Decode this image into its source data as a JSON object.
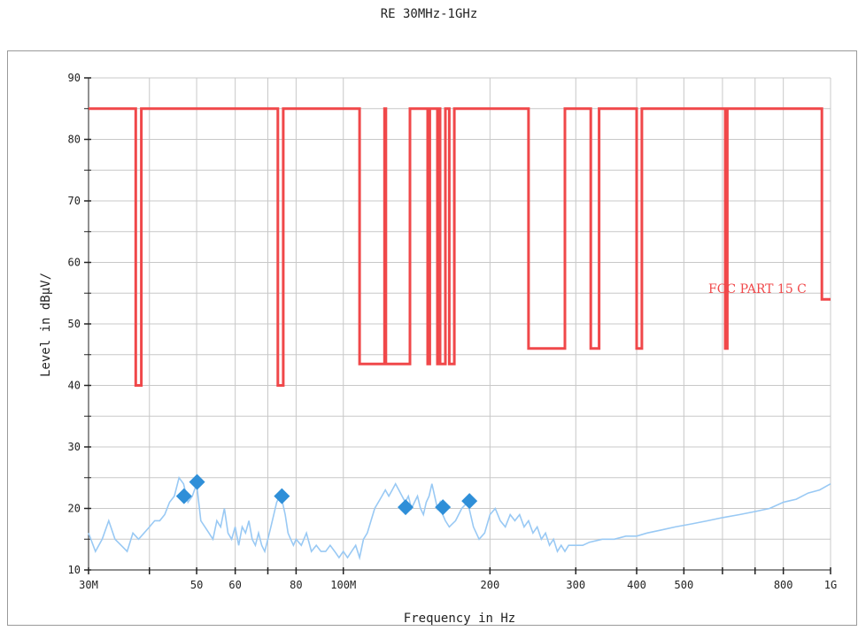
{
  "chart_data": {
    "type": "line",
    "title": "RE 30MHz-1GHz",
    "xlabel": "Frequency in Hz",
    "ylabel": "Level in dBμV/",
    "x_scale": "log",
    "xlim": [
      30,
      1000
    ],
    "ylim": [
      10,
      90
    ],
    "y_ticks": [
      10,
      20,
      30,
      40,
      50,
      60,
      70,
      80,
      90
    ],
    "x_ticks": [
      {
        "value": 30,
        "label": "30M"
      },
      {
        "value": 40,
        "label": ""
      },
      {
        "value": 50,
        "label": "50"
      },
      {
        "value": 60,
        "label": "60"
      },
      {
        "value": 70,
        "label": ""
      },
      {
        "value": 80,
        "label": "80"
      },
      {
        "value": 100,
        "label": "100M"
      },
      {
        "value": 200,
        "label": "200"
      },
      {
        "value": 300,
        "label": "300"
      },
      {
        "value": 400,
        "label": "400"
      },
      {
        "value": 500,
        "label": "500"
      },
      {
        "value": 600,
        "label": ""
      },
      {
        "value": 700,
        "label": ""
      },
      {
        "value": 800,
        "label": "800"
      },
      {
        "value": 1000,
        "label": "1G"
      }
    ],
    "grid": true,
    "colors": {
      "limit": "#f0484a",
      "trace": "#99c9f4",
      "marker": "#2f8fd8",
      "grid": "#c8c8c8"
    },
    "series": [
      {
        "name": "FCC PART 15 C",
        "kind": "limit",
        "step": true,
        "points": [
          [
            30,
            85
          ],
          [
            37.5,
            85
          ],
          [
            37.5,
            40
          ],
          [
            38.5,
            40
          ],
          [
            38.5,
            85
          ],
          [
            73.4,
            85
          ],
          [
            73.4,
            40
          ],
          [
            75.3,
            40
          ],
          [
            75.3,
            85
          ],
          [
            108,
            85
          ],
          [
            108,
            43.5
          ],
          [
            121.5,
            43.5
          ],
          [
            121.5,
            85
          ],
          [
            122.3,
            85
          ],
          [
            122.3,
            43.5
          ],
          [
            137,
            43.5
          ],
          [
            137,
            85
          ],
          [
            149,
            85
          ],
          [
            149,
            43.5
          ],
          [
            150.5,
            43.5
          ],
          [
            150.5,
            85
          ],
          [
            156,
            85
          ],
          [
            156,
            43.5
          ],
          [
            156.8,
            43.5
          ],
          [
            156.8,
            85
          ],
          [
            158,
            85
          ],
          [
            158,
            43.5
          ],
          [
            162,
            43.5
          ],
          [
            162,
            85
          ],
          [
            165,
            85
          ],
          [
            165,
            43.5
          ],
          [
            169,
            43.5
          ],
          [
            169,
            85
          ],
          [
            240,
            85
          ],
          [
            240,
            46
          ],
          [
            285,
            46
          ],
          [
            285,
            85
          ],
          [
            322,
            85
          ],
          [
            322,
            46
          ],
          [
            335,
            46
          ],
          [
            335,
            85
          ],
          [
            399.9,
            85
          ],
          [
            399.9,
            46
          ],
          [
            410,
            46
          ],
          [
            410,
            85
          ],
          [
            608,
            85
          ],
          [
            608,
            46
          ],
          [
            614,
            46
          ],
          [
            614,
            85
          ],
          [
            960,
            85
          ],
          [
            960,
            54
          ],
          [
            1000,
            54
          ]
        ]
      },
      {
        "name": "",
        "kind": "trace",
        "points": [
          [
            30,
            16
          ],
          [
            31,
            13
          ],
          [
            32,
            15
          ],
          [
            33,
            18
          ],
          [
            34,
            15
          ],
          [
            35,
            14
          ],
          [
            36,
            13
          ],
          [
            37,
            16
          ],
          [
            38,
            15
          ],
          [
            39,
            16
          ],
          [
            40,
            17
          ],
          [
            41,
            18
          ],
          [
            42,
            18
          ],
          [
            43,
            19
          ],
          [
            44,
            21
          ],
          [
            45,
            22
          ],
          [
            46,
            25
          ],
          [
            47,
            24
          ],
          [
            48,
            21
          ],
          [
            49,
            22
          ],
          [
            50,
            24
          ],
          [
            51,
            18
          ],
          [
            52,
            17
          ],
          [
            53,
            16
          ],
          [
            54,
            15
          ],
          [
            55,
            18
          ],
          [
            56,
            17
          ],
          [
            57,
            20
          ],
          [
            58,
            16
          ],
          [
            59,
            15
          ],
          [
            60,
            17
          ],
          [
            61,
            14
          ],
          [
            62,
            17
          ],
          [
            63,
            16
          ],
          [
            64,
            18
          ],
          [
            65,
            15
          ],
          [
            66,
            14
          ],
          [
            67,
            16
          ],
          [
            68,
            14
          ],
          [
            69,
            13
          ],
          [
            70,
            15
          ],
          [
            71,
            17
          ],
          [
            72,
            19
          ],
          [
            73,
            21
          ],
          [
            74,
            22
          ],
          [
            75,
            21
          ],
          [
            76,
            19
          ],
          [
            77,
            16
          ],
          [
            78,
            15
          ],
          [
            79,
            14
          ],
          [
            80,
            15
          ],
          [
            82,
            14
          ],
          [
            84,
            16
          ],
          [
            86,
            13
          ],
          [
            88,
            14
          ],
          [
            90,
            13
          ],
          [
            92,
            13
          ],
          [
            94,
            14
          ],
          [
            96,
            13
          ],
          [
            98,
            12
          ],
          [
            100,
            13
          ],
          [
            102,
            12
          ],
          [
            104,
            13
          ],
          [
            106,
            14
          ],
          [
            108,
            12
          ],
          [
            110,
            15
          ],
          [
            112,
            16
          ],
          [
            114,
            18
          ],
          [
            116,
            20
          ],
          [
            118,
            21
          ],
          [
            120,
            22
          ],
          [
            122,
            23
          ],
          [
            124,
            22
          ],
          [
            126,
            23
          ],
          [
            128,
            24
          ],
          [
            130,
            23
          ],
          [
            132,
            22
          ],
          [
            134,
            21
          ],
          [
            136,
            22
          ],
          [
            138,
            20
          ],
          [
            140,
            21
          ],
          [
            142,
            22
          ],
          [
            144,
            20
          ],
          [
            146,
            19
          ],
          [
            148,
            21
          ],
          [
            150,
            22
          ],
          [
            152,
            24
          ],
          [
            154,
            22
          ],
          [
            156,
            20
          ],
          [
            158,
            21
          ],
          [
            160,
            19
          ],
          [
            162,
            18
          ],
          [
            165,
            17
          ],
          [
            170,
            18
          ],
          [
            175,
            20
          ],
          [
            180,
            21
          ],
          [
            185,
            17
          ],
          [
            190,
            15
          ],
          [
            195,
            16
          ],
          [
            200,
            19
          ],
          [
            205,
            20
          ],
          [
            210,
            18
          ],
          [
            215,
            17
          ],
          [
            220,
            19
          ],
          [
            225,
            18
          ],
          [
            230,
            19
          ],
          [
            235,
            17
          ],
          [
            240,
            18
          ],
          [
            245,
            16
          ],
          [
            250,
            17
          ],
          [
            255,
            15
          ],
          [
            260,
            16
          ],
          [
            265,
            14
          ],
          [
            270,
            15
          ],
          [
            275,
            13
          ],
          [
            280,
            14
          ],
          [
            285,
            13
          ],
          [
            290,
            14
          ],
          [
            300,
            14
          ],
          [
            310,
            14
          ],
          [
            320,
            14.5
          ],
          [
            340,
            15
          ],
          [
            360,
            15
          ],
          [
            380,
            15.5
          ],
          [
            400,
            15.5
          ],
          [
            420,
            16
          ],
          [
            450,
            16.5
          ],
          [
            480,
            17
          ],
          [
            520,
            17.5
          ],
          [
            560,
            18
          ],
          [
            600,
            18.5
          ],
          [
            650,
            19
          ],
          [
            700,
            19.5
          ],
          [
            750,
            20
          ],
          [
            800,
            21
          ],
          [
            850,
            21.5
          ],
          [
            900,
            22.5
          ],
          [
            950,
            23
          ],
          [
            1000,
            24
          ]
        ]
      }
    ],
    "markers": [
      {
        "x": 47.1,
        "y": 22.0
      },
      {
        "x": 50.1,
        "y": 24.3
      },
      {
        "x": 74.8,
        "y": 22.0
      },
      {
        "x": 134.2,
        "y": 20.2
      },
      {
        "x": 160.1,
        "y": 20.2
      },
      {
        "x": 181.5,
        "y": 21.2
      }
    ]
  }
}
